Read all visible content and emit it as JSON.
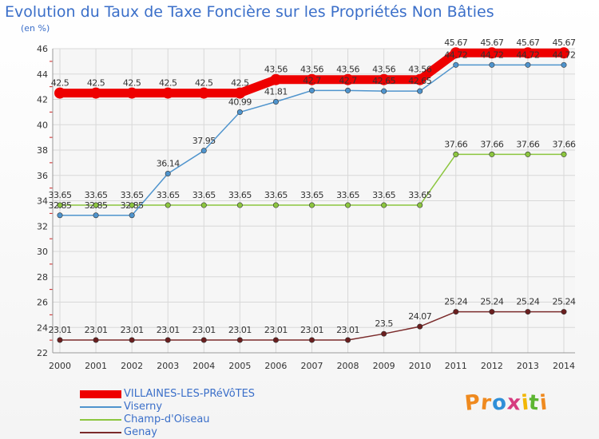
{
  "title": "Evolution du Taux de Taxe Foncière sur les Propriétés Non Bâties",
  "unit": "(en %)",
  "logo": {
    "letters": [
      "P",
      "r",
      "o",
      "x",
      "i",
      "t",
      "i"
    ],
    "colors": [
      "#ef8a1f",
      "#ef8a1f",
      "#2f8fd8",
      "#d63b7f",
      "#f2b705",
      "#5cb531",
      "#ef8a1f"
    ]
  },
  "chart_data": {
    "type": "line",
    "x": [
      "2000",
      "2001",
      "2002",
      "2003",
      "2004",
      "2005",
      "2006",
      "2007",
      "2008",
      "2009",
      "2010",
      "2011",
      "2012",
      "2013",
      "2014"
    ],
    "ylim": [
      22,
      46
    ],
    "yticks": [
      "22",
      "24",
      "26",
      "28",
      "30",
      "32",
      "34",
      "36",
      "38",
      "40",
      "42",
      "44",
      "46"
    ],
    "grid": true,
    "legend_position": "bottom-left",
    "series": [
      {
        "name": "VILLAINES-LES-PRéVôTES",
        "color": "#ee0000",
        "values": [
          42.5,
          42.5,
          42.5,
          42.5,
          42.5,
          42.5,
          43.56,
          43.56,
          43.56,
          43.56,
          43.56,
          45.67,
          45.67,
          45.67,
          45.67
        ],
        "labels": [
          "42.5",
          "42.5",
          "42.5",
          "42.5",
          "42.5",
          "42.5",
          "43.56",
          "43.56",
          "43.56",
          "43.56",
          "43.56",
          "45.67",
          "45.67",
          "45.67",
          "45.67"
        ]
      },
      {
        "name": "Viserny",
        "color": "#4f94cd",
        "values": [
          32.85,
          32.85,
          32.85,
          36.14,
          37.95,
          40.99,
          41.81,
          42.7,
          42.7,
          42.65,
          42.65,
          44.72,
          44.72,
          44.72,
          44.72
        ],
        "labels": [
          "32.85",
          "32.85",
          "32.85",
          "36.14",
          "37.95",
          "40.99",
          "41.81",
          "42.7",
          "42.7",
          "42.65",
          "42.65",
          "44.72",
          "44.72",
          "44.72",
          "44.72"
        ]
      },
      {
        "name": "Champ-d'Oiseau",
        "color": "#8cc63f",
        "values": [
          33.65,
          33.65,
          33.65,
          33.65,
          33.65,
          33.65,
          33.65,
          33.65,
          33.65,
          33.65,
          33.65,
          37.66,
          37.66,
          37.66,
          37.66
        ],
        "labels": [
          "33.65",
          "33.65",
          "33.65",
          "33.65",
          "33.65",
          "33.65",
          "33.65",
          "33.65",
          "33.65",
          "33.65",
          "33.65",
          "37.66",
          "37.66",
          "37.66",
          "37.66"
        ]
      },
      {
        "name": "Genay",
        "color": "#7b2b2b",
        "values": [
          23.01,
          23.01,
          23.01,
          23.01,
          23.01,
          23.01,
          23.01,
          23.01,
          23.01,
          23.5,
          24.07,
          25.24,
          25.24,
          25.24,
          25.24
        ],
        "labels": [
          "23.01",
          "23.01",
          "23.01",
          "23.01",
          "23.01",
          "23.01",
          "23.01",
          "23.01",
          "23.01",
          "23.5",
          "24.07",
          "25.24",
          "25.24",
          "25.24",
          "25.24"
        ]
      }
    ]
  }
}
